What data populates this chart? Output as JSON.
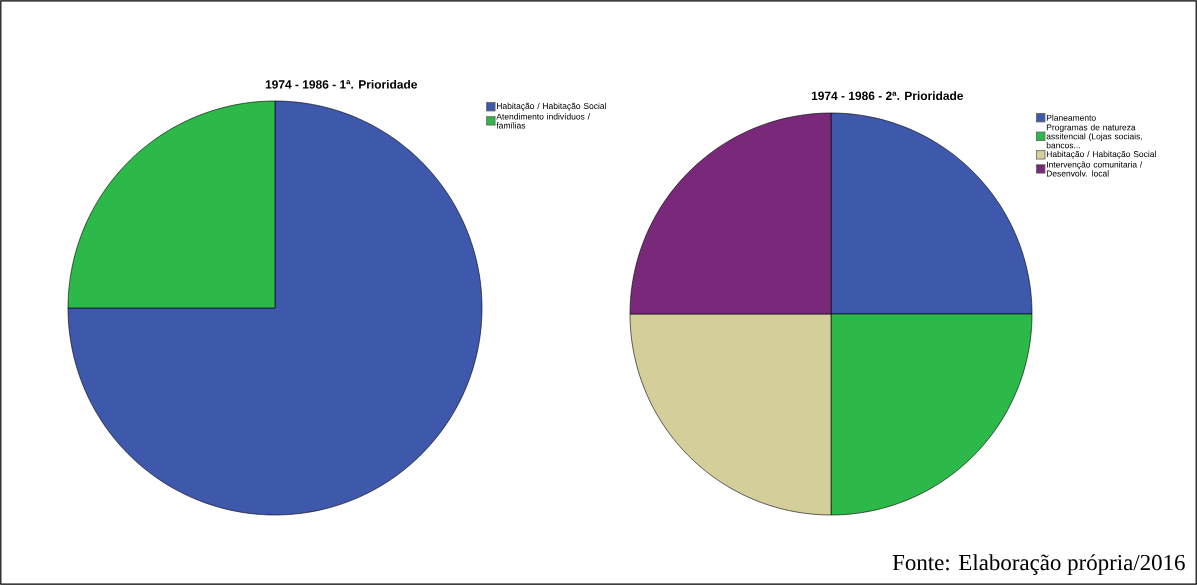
{
  "chart_data": [
    {
      "type": "pie",
      "title": "1974 - 1986 - 1ª. Prioridade",
      "categories": [
        "Habitação / Habitação Social",
        "Atendimento indivíduos / famílias"
      ],
      "values": [
        75,
        25
      ],
      "colors": [
        "#3e58ac",
        "#2db84a"
      ],
      "legend": "top right"
    },
    {
      "type": "pie",
      "title": "1974 - 1986 - 2ª. Prioridade",
      "categories": [
        "Planeamento",
        "Programas de natureza assitencial (Lojas sociais, bancos...",
        "Habitação / Habitação Social",
        "Intervenção comunitaria / Desenvolv. local"
      ],
      "values": [
        25,
        25,
        25,
        25
      ],
      "colors": [
        "#3e58ac",
        "#2db84a",
        "#d4cf9a",
        "#7a297a"
      ],
      "legend": "top right",
      "annotations": [
        "Fonte: Elaboração própria/2016"
      ]
    }
  ]
}
